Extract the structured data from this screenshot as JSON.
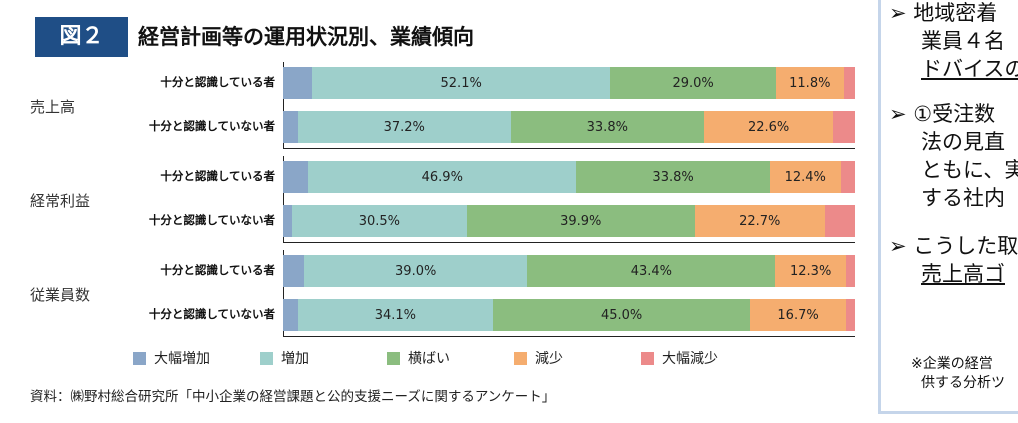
{
  "header": {
    "figure_label": "図２",
    "title": "経営計画等の運用状況別、業績傾向"
  },
  "colors": {
    "大幅増加": "#8aa6c8",
    "増加": "#9ecfcb",
    "横ばい": "#8bbd7f",
    "減少": "#f5ad6f",
    "大幅減少": "#ec8a8a",
    "badge": "#1f4e86"
  },
  "chart_data": {
    "type": "bar",
    "orientation": "horizontal-stacked-100",
    "groups": [
      "売上高",
      "経常利益",
      "従業員数"
    ],
    "row_labels": [
      "十分と認識している者",
      "十分と認識していない者"
    ],
    "legend": [
      "大幅増加",
      "増加",
      "横ばい",
      "減少",
      "大幅減少"
    ],
    "legend_placement": "bottom",
    "rows": [
      {
        "group": "売上高",
        "label": "十分と認識している者",
        "values": [
          5.1,
          52.1,
          29.0,
          11.8,
          2.0
        ],
        "labels": [
          "",
          "52.1%",
          "29.0%",
          "11.8%",
          ""
        ]
      },
      {
        "group": "売上高",
        "label": "十分と認識していない者",
        "values": [
          2.6,
          37.2,
          33.8,
          22.6,
          3.8
        ],
        "labels": [
          "",
          "37.2%",
          "33.8%",
          "22.6%",
          ""
        ]
      },
      {
        "group": "経常利益",
        "label": "十分と認識している者",
        "values": [
          4.4,
          46.9,
          33.8,
          12.4,
          2.5
        ],
        "labels": [
          "",
          "46.9%",
          "33.8%",
          "12.4%",
          ""
        ]
      },
      {
        "group": "経常利益",
        "label": "十分と認識していない者",
        "values": [
          1.6,
          30.5,
          39.9,
          22.7,
          5.3
        ],
        "labels": [
          "",
          "30.5%",
          "39.9%",
          "22.7%",
          ""
        ]
      },
      {
        "group": "従業員数",
        "label": "十分と認識している者",
        "values": [
          3.7,
          39.0,
          43.4,
          12.3,
          1.6
        ],
        "labels": [
          "",
          "39.0%",
          "43.4%",
          "12.3%",
          ""
        ]
      },
      {
        "group": "従業員数",
        "label": "十分と認識していない者",
        "values": [
          2.6,
          34.1,
          45.0,
          16.7,
          1.6
        ],
        "labels": [
          "",
          "34.1%",
          "45.0%",
          "16.7%",
          ""
        ]
      }
    ],
    "xlim": [
      0,
      100
    ]
  },
  "source": "資料：㈱野村総合研究所「中小企業の経営課題と公的支援ニーズに関するアンケート」",
  "side_panel": {
    "lines": [
      "➢ 地域密着",
      "業員４名",
      "ドバイスの",
      "➢ ①受注数",
      "法の見直",
      "ともに、実",
      "する社内",
      "➢ こうした取",
      "売上高ゴ"
    ],
    "note": [
      "※企業の経営",
      "供する分析ツ"
    ]
  }
}
